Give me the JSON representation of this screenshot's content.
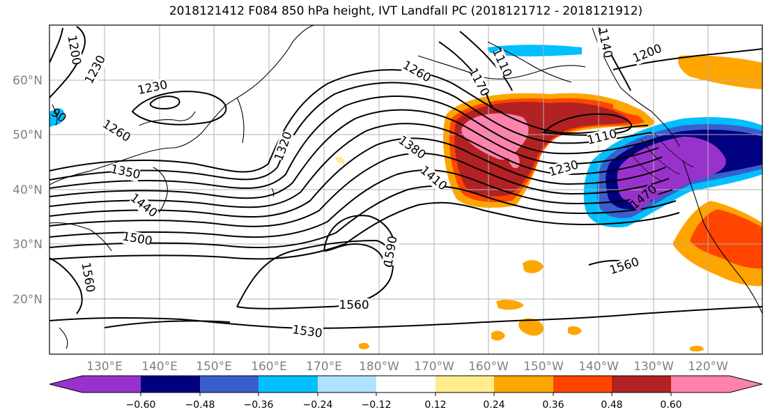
{
  "title": "2018121412 F084 850 hPa height, IVT Landfall PC (2018121712 - 2018121912)",
  "lat_labels": [
    "60°N",
    "50°N",
    "40°N",
    "30°N",
    "20°N"
  ],
  "lon_labels": [
    "130°E",
    "140°E",
    "150°E",
    "160°E",
    "170°E",
    "180°W",
    "170°W",
    "160°W",
    "150°W",
    "140°W",
    "130°W",
    "120°W"
  ],
  "colorbar": {
    "labels": [
      "−0.60",
      "−0.48",
      "−0.36",
      "−0.24",
      "−0.12",
      "0.12",
      "0.24",
      "0.36",
      "0.48",
      "0.60"
    ],
    "colors": [
      "#9932cc",
      "#000080",
      "#3a5fcd",
      "#00bfff",
      "#b0e2ff",
      "#ffffff",
      "#ffec8b",
      "#ffa500",
      "#ff4500",
      "#b22222",
      "#ff82ab"
    ]
  },
  "contour_labels": [
    "1200",
    "1230",
    "1230",
    "1260",
    "1350",
    "1440",
    "1500",
    "1560",
    "1320",
    "1380",
    "1410",
    "1590",
    "1560",
    "1530",
    "1260",
    "1110",
    "1170",
    "1140",
    "1200",
    "1110",
    "1230",
    "1470",
    "1560",
    "90"
  ]
}
